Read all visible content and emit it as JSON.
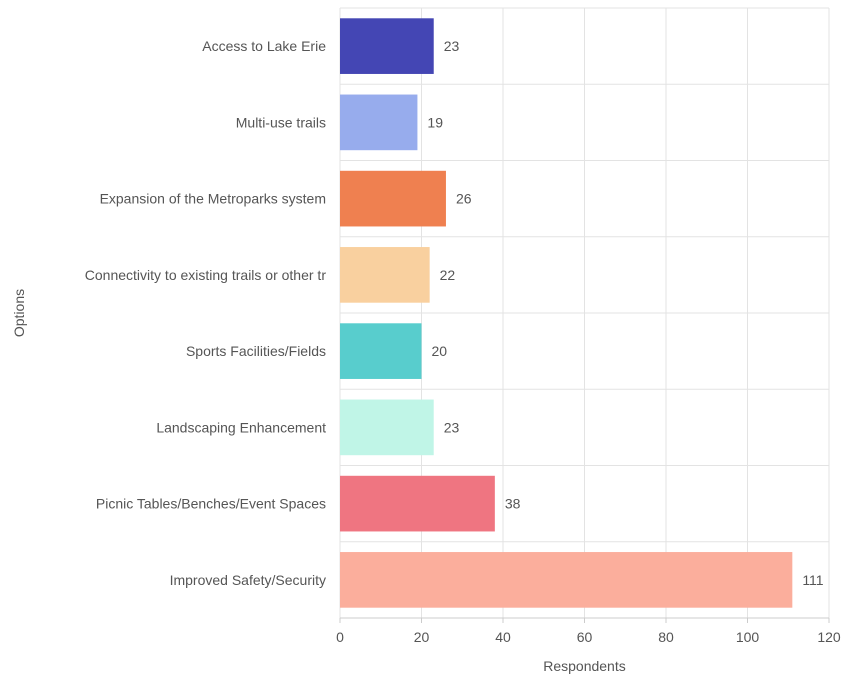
{
  "chart_data": {
    "type": "bar",
    "orientation": "horizontal",
    "categories": [
      "Access to Lake Erie",
      "Multi-use trails",
      "Expansion of the Metroparks system",
      "Connectivity to existing trails or other tr",
      "Sports Facilities/Fields",
      "Landscaping Enhancement",
      "Picnic Tables/Benches/Event Spaces",
      "Improved Safety/Security"
    ],
    "values": [
      23,
      19,
      26,
      22,
      20,
      23,
      38,
      111
    ],
    "colors": [
      "#4446b4",
      "#97aced",
      "#ef8050",
      "#f9d09f",
      "#58cdcd",
      "#c0f5e7",
      "#ef7581",
      "#fbae9c"
    ],
    "xlabel": "Respondents",
    "ylabel": "Options",
    "xlim": [
      0,
      120
    ],
    "x_ticks": [
      0,
      20,
      40,
      60,
      80,
      100,
      120
    ],
    "grid": true,
    "legend": "none",
    "data_labels": true
  }
}
